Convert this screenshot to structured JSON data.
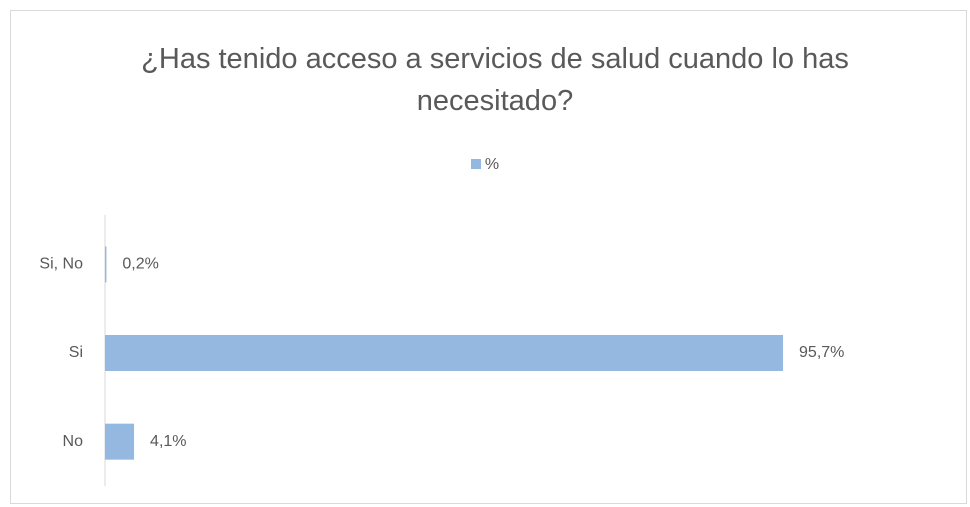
{
  "chart_data": {
    "type": "hbar",
    "title": "¿Has tenido acceso a servicios de salud cuando lo has necesitado?",
    "categories": [
      "Si, No",
      "Si",
      "No"
    ],
    "series": [
      {
        "name": "%",
        "color": "#95b8e0",
        "values": [
          0.2,
          95.7,
          4.1
        ],
        "value_labels": [
          "0,2%",
          "95,7%",
          "4,1%"
        ]
      }
    ],
    "legend": "top"
  }
}
